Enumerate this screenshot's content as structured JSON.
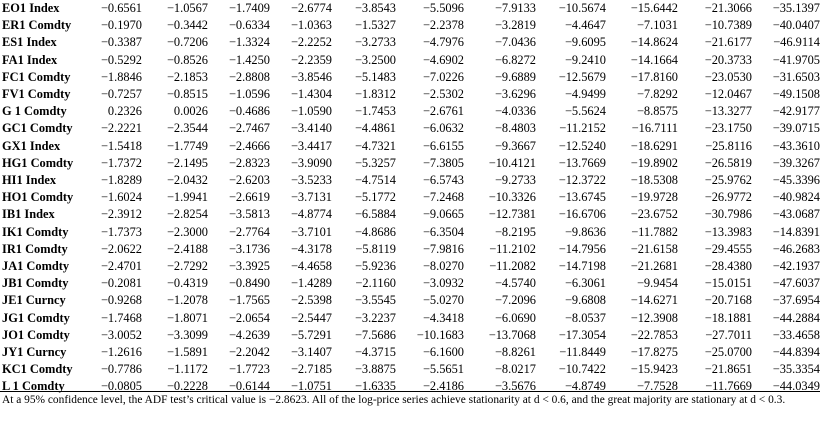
{
  "table": {
    "rows": [
      {
        "label": "EO1 Index",
        "values": [
          "−0.6561",
          "−1.0567",
          "−1.7409",
          "−2.6774",
          "−3.8543",
          "−5.5096",
          "−7.9133",
          "−10.5674",
          "−15.6442",
          "−21.3066",
          "−35.1397"
        ]
      },
      {
        "label": "ER1 Comdty",
        "values": [
          "−0.1970",
          "−0.3442",
          "−0.6334",
          "−1.0363",
          "−1.5327",
          "−2.2378",
          "−3.2819",
          "−4.4647",
          "−7.1031",
          "−10.7389",
          "−40.0407"
        ]
      },
      {
        "label": "ES1 Index",
        "values": [
          "−0.3387",
          "−0.7206",
          "−1.3324",
          "−2.2252",
          "−3.2733",
          "−4.7976",
          "−7.0436",
          "−9.6095",
          "−14.8624",
          "−21.6177",
          "−46.9114"
        ]
      },
      {
        "label": "FA1 Index",
        "values": [
          "−0.5292",
          "−0.8526",
          "−1.4250",
          "−2.2359",
          "−3.2500",
          "−4.6902",
          "−6.8272",
          "−9.2410",
          "−14.1664",
          "−20.3733",
          "−41.9705"
        ]
      },
      {
        "label": "FC1 Comdty",
        "values": [
          "−1.8846",
          "−2.1853",
          "−2.8808",
          "−3.8546",
          "−5.1483",
          "−7.0226",
          "−9.6889",
          "−12.5679",
          "−17.8160",
          "−23.0530",
          "−31.6503"
        ]
      },
      {
        "label": "FV1 Comdty",
        "values": [
          "−0.7257",
          "−0.8515",
          "−1.0596",
          "−1.4304",
          "−1.8312",
          "−2.5302",
          "−3.6296",
          "−4.9499",
          "−7.8292",
          "−12.0467",
          "−49.1508"
        ]
      },
      {
        "label": "G 1 Comdty",
        "values": [
          "0.2326",
          "0.0026",
          "−0.4686",
          "−1.0590",
          "−1.7453",
          "−2.6761",
          "−4.0336",
          "−5.5624",
          "−8.8575",
          "−13.3277",
          "−42.9177"
        ]
      },
      {
        "label": "GC1 Comdty",
        "values": [
          "−2.2221",
          "−2.3544",
          "−2.7467",
          "−3.4140",
          "−4.4861",
          "−6.0632",
          "−8.4803",
          "−11.2152",
          "−16.7111",
          "−23.1750",
          "−39.0715"
        ]
      },
      {
        "label": "GX1 Index",
        "values": [
          "−1.5418",
          "−1.7749",
          "−2.4666",
          "−3.4417",
          "−4.7321",
          "−6.6155",
          "−9.3667",
          "−12.5240",
          "−18.6291",
          "−25.8116",
          "−43.3610"
        ]
      },
      {
        "label": "HG1 Comdty",
        "values": [
          "−1.7372",
          "−2.1495",
          "−2.8323",
          "−3.9090",
          "−5.3257",
          "−7.3805",
          "−10.4121",
          "−13.7669",
          "−19.8902",
          "−26.5819",
          "−39.3267"
        ]
      },
      {
        "label": "HI1 Index",
        "values": [
          "−1.8289",
          "−2.0432",
          "−2.6203",
          "−3.5233",
          "−4.7514",
          "−6.5743",
          "−9.2733",
          "−12.3722",
          "−18.5308",
          "−25.9762",
          "−45.3396"
        ]
      },
      {
        "label": "HO1 Comdty",
        "values": [
          "−1.6024",
          "−1.9941",
          "−2.6619",
          "−3.7131",
          "−5.1772",
          "−7.2468",
          "−10.3326",
          "−13.6745",
          "−19.9728",
          "−26.9772",
          "−40.9824"
        ]
      },
      {
        "label": "IB1 Index",
        "values": [
          "−2.3912",
          "−2.8254",
          "−3.5813",
          "−4.8774",
          "−6.5884",
          "−9.0665",
          "−12.7381",
          "−16.6706",
          "−23.6752",
          "−30.7986",
          "−43.0687"
        ]
      },
      {
        "label": "IK1 Comdty",
        "values": [
          "−1.7373",
          "−2.3000",
          "−2.7764",
          "−3.7101",
          "−4.8686",
          "−6.3504",
          "−8.2195",
          "−9.8636",
          "−11.7882",
          "−13.3983",
          "−14.8391"
        ]
      },
      {
        "label": "IR1 Comdty",
        "values": [
          "−2.0622",
          "−2.4188",
          "−3.1736",
          "−4.3178",
          "−5.8119",
          "−7.9816",
          "−11.2102",
          "−14.7956",
          "−21.6158",
          "−29.4555",
          "−46.2683"
        ]
      },
      {
        "label": "JA1 Comdty",
        "values": [
          "−2.4701",
          "−2.7292",
          "−3.3925",
          "−4.4658",
          "−5.9236",
          "−8.0270",
          "−11.2082",
          "−14.7198",
          "−21.2681",
          "−28.4380",
          "−42.1937"
        ]
      },
      {
        "label": "JB1 Comdty",
        "values": [
          "−0.2081",
          "−0.4319",
          "−0.8490",
          "−1.4289",
          "−2.1160",
          "−3.0932",
          "−4.5740",
          "−6.3061",
          "−9.9454",
          "−15.0151",
          "−47.6037"
        ]
      },
      {
        "label": "JE1 Curncy",
        "values": [
          "−0.9268",
          "−1.2078",
          "−1.7565",
          "−2.5398",
          "−3.5545",
          "−5.0270",
          "−7.2096",
          "−9.6808",
          "−14.6271",
          "−20.7168",
          "−37.6954"
        ]
      },
      {
        "label": "JG1 Comdty",
        "values": [
          "−1.7468",
          "−1.8071",
          "−2.0654",
          "−2.5447",
          "−3.2237",
          "−4.3418",
          "−6.0690",
          "−8.0537",
          "−12.3908",
          "−18.1881",
          "−44.2884"
        ]
      },
      {
        "label": "JO1 Comdty",
        "values": [
          "−3.0052",
          "−3.3099",
          "−4.2639",
          "−5.7291",
          "−7.5686",
          "−10.1683",
          "−13.7068",
          "−17.3054",
          "−22.7853",
          "−27.7011",
          "−33.4658"
        ]
      },
      {
        "label": "JY1 Curncy",
        "values": [
          "−1.2616",
          "−1.5891",
          "−2.2042",
          "−3.1407",
          "−4.3715",
          "−6.1600",
          "−8.8261",
          "−11.8449",
          "−17.8275",
          "−25.0700",
          "−44.8394"
        ]
      },
      {
        "label": "KC1 Comdty",
        "values": [
          "−0.7786",
          "−1.1172",
          "−1.7723",
          "−2.7185",
          "−3.8875",
          "−5.5651",
          "−8.0217",
          "−10.7422",
          "−15.9423",
          "−21.8651",
          "−35.3354"
        ]
      },
      {
        "label": "L 1 Comdty",
        "values": [
          "−0.0805",
          "−0.2228",
          "−0.6144",
          "−1.0751",
          "−1.6335",
          "−2.4186",
          "−3.5676",
          "−4.8749",
          "−7.7528",
          "−11.7669",
          "−44.0349"
        ]
      }
    ]
  },
  "footnote": {
    "text": "At a 95% confidence level, the ADF test’s critical value is −2.8623. All of the log-price series achieve stationarity at d < 0.6, and the great majority are stationary at d < 0.3."
  }
}
